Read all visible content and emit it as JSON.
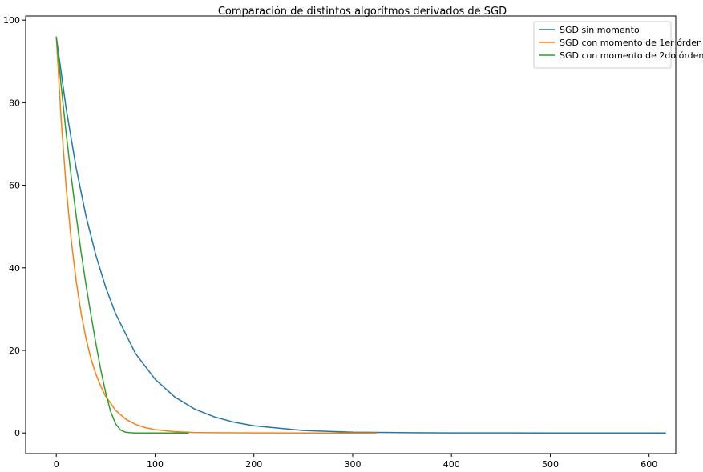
{
  "chart_data": {
    "type": "line",
    "title": "Comparación de distintos algorítmos derivados de SGD",
    "xlabel": "",
    "ylabel": "",
    "xlim": [
      -31,
      627
    ],
    "ylim": [
      -5,
      101
    ],
    "xticks": [
      0,
      100,
      200,
      300,
      400,
      500,
      600
    ],
    "yticks": [
      0,
      20,
      40,
      60,
      80,
      100
    ],
    "grid": false,
    "legend_position": "top-right",
    "series": [
      {
        "name": "SGD sin momento",
        "color": "#1f77b4",
        "x": [
          0,
          10,
          20,
          30,
          40,
          50,
          60,
          80,
          100,
          120,
          140,
          160,
          180,
          200,
          250,
          300,
          350,
          400,
          450,
          500,
          550,
          617
        ],
        "y": [
          96,
          78.6,
          64.3,
          52.6,
          43.1,
          35.3,
          28.9,
          19.3,
          13.0,
          8.7,
          5.8,
          3.9,
          2.6,
          1.74,
          0.6,
          0.2,
          0.07,
          0.02,
          0.01,
          0.0,
          0.0,
          0.0
        ]
      },
      {
        "name": "SGD con momento de 1er órden",
        "color": "#ff7f0e",
        "x": [
          0,
          5,
          10,
          15,
          20,
          25,
          30,
          35,
          40,
          45,
          50,
          60,
          70,
          80,
          90,
          100,
          120,
          140,
          160,
          200,
          250,
          324
        ],
        "y": [
          96,
          75.6,
          59.6,
          47.0,
          37.0,
          29.2,
          23.0,
          18.1,
          14.3,
          11.3,
          8.9,
          5.5,
          3.4,
          2.1,
          1.3,
          0.8,
          0.3,
          0.12,
          0.05,
          0.01,
          0.0,
          0.0
        ]
      },
      {
        "name": "SGD con momento de 2do órden",
        "color": "#2ca02c",
        "x": [
          0,
          5,
          10,
          15,
          20,
          25,
          30,
          35,
          40,
          45,
          50,
          55,
          60,
          65,
          70,
          75,
          80,
          90,
          100,
          134
        ],
        "y": [
          96,
          83.9,
          72.6,
          62.3,
          52.8,
          44.0,
          36.0,
          28.8,
          21.8,
          15.3,
          9.8,
          5.2,
          2.2,
          0.7,
          0.2,
          0.05,
          0.0,
          0.0,
          0.0,
          0.0
        ]
      }
    ]
  }
}
